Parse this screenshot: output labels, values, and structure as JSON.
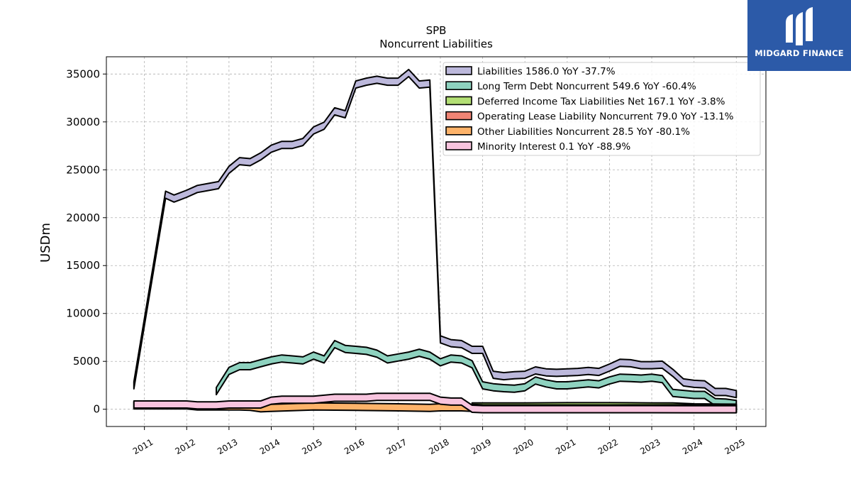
{
  "logo": {
    "text": "MIDGARD FINANCE"
  },
  "chart_data": {
    "type": "area",
    "title": "SPB",
    "subtitle": "Noncurrent  Liabilities",
    "xlabel": "",
    "ylabel": "USDm",
    "ylim": [
      -1800,
      36800
    ],
    "xlim": [
      2010.1,
      2025.7
    ],
    "yticks": [
      0,
      5000,
      10000,
      15000,
      20000,
      25000,
      30000,
      35000
    ],
    "xticks": [
      "2011",
      "2012",
      "2013",
      "2014",
      "2015",
      "2016",
      "2017",
      "2018",
      "2019",
      "2020",
      "2021",
      "2022",
      "2023",
      "2024",
      "2025"
    ],
    "grid": true,
    "legend_position": "top-right",
    "legend": [
      "Liabilities  1586.0 YoY -37.7%",
      "Long Term Debt Noncurrent  549.6 YoY -60.4%",
      "Deferred Income Tax Liabilities Net  167.1 YoY -3.8%",
      "Operating Lease Liability Noncurrent  79.0 YoY -13.1%",
      "Other Liabilities Noncurrent  28.5 YoY -80.1%",
      "Minority Interest  0.1 YoY -88.9%"
    ],
    "series": [
      {
        "name": "Liabilities",
        "color": "#bcb8db",
        "x": [
          2010.75,
          2011.5,
          2011.7,
          2012.0,
          2012.25,
          2012.5,
          2012.75,
          2013.0,
          2013.25,
          2013.5,
          2013.75,
          2014.0,
          2014.25,
          2014.5,
          2014.75,
          2015.0,
          2015.25,
          2015.5,
          2015.75,
          2016.0,
          2016.25,
          2016.5,
          2016.75,
          2017.0,
          2017.25,
          2017.5,
          2017.75,
          2018.0,
          2018.25,
          2018.5,
          2018.75,
          2019.0,
          2019.25,
          2019.5,
          2019.75,
          2020.0,
          2020.25,
          2020.5,
          2020.75,
          2021.0,
          2021.25,
          2021.5,
          2021.75,
          2022.0,
          2022.25,
          2022.5,
          2022.75,
          2023.0,
          2023.25,
          2023.5,
          2023.75,
          2024.0,
          2024.25,
          2024.5,
          2024.75,
          2025.0
        ],
        "values": [
          2500,
          22400,
          22000,
          22500,
          23000,
          23200,
          23400,
          25000,
          25900,
          25800,
          26400,
          27200,
          27600,
          27600,
          27900,
          29100,
          29600,
          31100,
          30800,
          33900,
          34200,
          34400,
          34200,
          34200,
          35100,
          33900,
          34000,
          7300,
          6900,
          6800,
          6200,
          6200,
          3600,
          3450,
          3550,
          3600,
          4050,
          3850,
          3800,
          3850,
          3900,
          4000,
          3900,
          4350,
          4850,
          4800,
          4600,
          4600,
          4650,
          3800,
          2800,
          2650,
          2600,
          1800,
          1800,
          1586
        ]
      },
      {
        "name": "Long Term Debt Noncurrent",
        "color": "#8ed2bf",
        "x": [
          2012.7,
          2013.0,
          2013.25,
          2013.5,
          2013.75,
          2014.0,
          2014.25,
          2014.5,
          2014.75,
          2015.0,
          2015.25,
          2015.5,
          2015.75,
          2016.0,
          2016.25,
          2016.5,
          2016.75,
          2017.0,
          2017.25,
          2017.5,
          2017.75,
          2018.0,
          2018.25,
          2018.5,
          2018.75,
          2019.0,
          2019.25,
          2019.5,
          2019.75,
          2020.0,
          2020.25,
          2020.5,
          2020.75,
          2021.0,
          2021.25,
          2021.5,
          2021.75,
          2022.0,
          2022.25,
          2022.5,
          2022.75,
          2023.0,
          2023.25,
          2023.5,
          2023.75,
          2024.0,
          2024.25,
          2024.5,
          2024.75,
          2025.0
        ],
        "values": [
          1900,
          4000,
          4500,
          4500,
          4800,
          5100,
          5300,
          5200,
          5100,
          5600,
          5200,
          6800,
          6300,
          6200,
          6100,
          5800,
          5200,
          5400,
          5600,
          5900,
          5600,
          4900,
          5300,
          5200,
          4700,
          2500,
          2300,
          2200,
          2150,
          2300,
          3000,
          2700,
          2500,
          2500,
          2600,
          2700,
          2600,
          3000,
          3300,
          3250,
          3200,
          3300,
          3150,
          1700,
          1600,
          1500,
          1500,
          750,
          700,
          550
        ]
      },
      {
        "name": "Deferred Income Tax Liabilities Net",
        "color": "#b3df74",
        "x": [
          2018.75,
          2019.0,
          2020.0,
          2021.0,
          2022.0,
          2023.0,
          2023.5,
          2024.0,
          2024.5,
          2025.0
        ],
        "values": [
          300,
          300,
          300,
          320,
          320,
          300,
          300,
          200,
          180,
          167
        ]
      },
      {
        "name": "Operating Lease Liability Noncurrent",
        "color": "#f08474",
        "x": [
          2018.75,
          2019.0,
          2020.0,
          2021.0,
          2022.0,
          2023.0,
          2023.5,
          2024.0,
          2024.5,
          2025.0
        ],
        "values": [
          80,
          80,
          80,
          85,
          85,
          90,
          100,
          110,
          100,
          79
        ]
      },
      {
        "name": "Other Liabilities Noncurrent",
        "color": "#fdb36a",
        "x": [
          2010.75,
          2011.5,
          2012.0,
          2012.25,
          2012.7,
          2013.0,
          2013.25,
          2013.5,
          2013.75,
          2014.0,
          2015.0,
          2016.0,
          2017.0,
          2017.75,
          2018.0,
          2018.5,
          2018.75,
          2019.0,
          2020.0,
          2021.0,
          2022.0,
          2023.0,
          2024.0,
          2025.0
        ],
        "values": [
          400,
          400,
          400,
          300,
          300,
          300,
          300,
          250,
          100,
          150,
          300,
          250,
          200,
          150,
          200,
          200,
          150,
          100,
          80,
          60,
          50,
          40,
          35,
          28.5
        ]
      },
      {
        "name": "Minority Interest",
        "color": "#f8c4de",
        "x": [
          2010.75,
          2011.5,
          2012.0,
          2012.25,
          2012.7,
          2013.0,
          2013.25,
          2013.5,
          2013.75,
          2014.0,
          2014.25,
          2014.5,
          2014.75,
          2015.0,
          2015.5,
          2016.0,
          2016.25,
          2016.5,
          2016.75,
          2017.0,
          2017.25,
          2017.5,
          2017.75,
          2018.0,
          2018.25,
          2018.5,
          2018.75,
          2019.0,
          2020.0,
          2021.0,
          2022.0,
          2023.0,
          2024.0,
          2025.0
        ],
        "values": [
          500,
          500,
          500,
          400,
          400,
          500,
          500,
          500,
          500,
          900,
          1000,
          1000,
          1000,
          1000,
          1200,
          1200,
          1200,
          1300,
          1300,
          1300,
          1300,
          1300,
          1300,
          900,
          800,
          800,
          50,
          10,
          10,
          10,
          10,
          5,
          2,
          0.1
        ]
      }
    ]
  }
}
